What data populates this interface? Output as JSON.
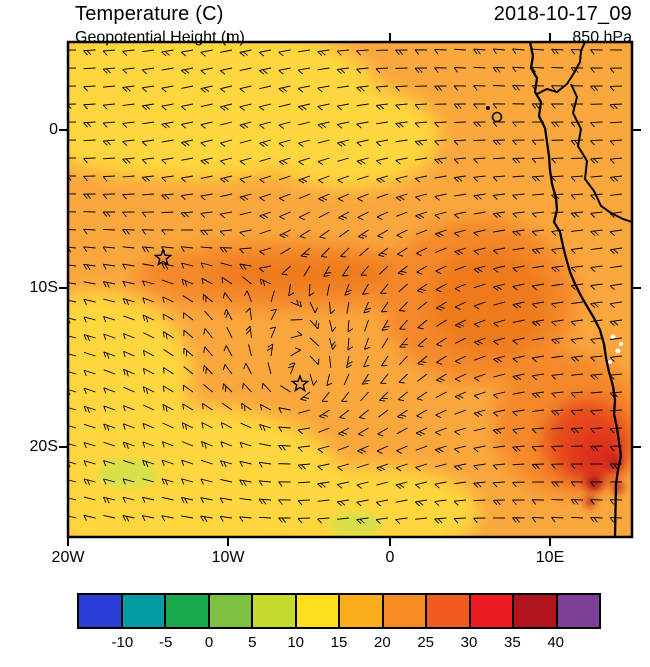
{
  "header": {
    "variable_title": "Temperature (C)",
    "overlay_title": "Geopotential Height (m)",
    "datetime": "2018-10-17_09",
    "level": "850 hPa"
  },
  "axes": {
    "y_tick_labels": [
      "0",
      "10S",
      "20S"
    ],
    "x_tick_labels": [
      "20W",
      "10W",
      "0",
      "10E"
    ]
  },
  "colorbar": {
    "tick_labels": [
      "-10",
      "-5",
      "0",
      "5",
      "10",
      "15",
      "20",
      "25",
      "30",
      "35",
      "40"
    ],
    "colors": [
      "#2B3FD8",
      "#009EA3",
      "#19A84B",
      "#7CC141",
      "#C6DB2F",
      "#FFDF1C",
      "#FBAD1E",
      "#F68C20",
      "#F25B20",
      "#EB1C23",
      "#B3131A",
      "#7E3F97"
    ]
  },
  "chart_data": {
    "type": "heatmap",
    "title": "Temperature (C)",
    "overlays": [
      "Geopotential Height (m)",
      "wind barbs"
    ],
    "valid_time": "2018-10-17_09",
    "pressure_level": "850 hPa",
    "x_axis": {
      "tick_labels": [
        "20W",
        "10W",
        "0",
        "10E"
      ],
      "approx_range": [
        "20W",
        "15E"
      ]
    },
    "y_axis": {
      "tick_labels": [
        "0",
        "10S",
        "20S"
      ],
      "approx_range": [
        "5N",
        "26S"
      ]
    },
    "colorbar_levels_c": [
      -10,
      -5,
      0,
      5,
      10,
      15,
      20,
      25,
      30,
      35,
      40
    ],
    "colorbar_colors": [
      "#2B3FD8",
      "#009EA3",
      "#19A84B",
      "#7CC141",
      "#C6DB2F",
      "#FFDF1C",
      "#FBAD1E",
      "#F68C20",
      "#F25B20",
      "#EB1C23",
      "#B3131A",
      "#7E3F97"
    ],
    "field_summary": [
      {
        "region": "most of the ocean domain",
        "temperature_c": "15-20"
      },
      {
        "region": "northwest corner and along the top edge",
        "temperature_c": "10-15"
      },
      {
        "region": "southwest quadrant and south-central patches",
        "temperature_c": "10-15"
      },
      {
        "region": "zonal band near 8S-11S from about 15W to 3E",
        "temperature_c": "20-25"
      },
      {
        "region": "large warm pool off the Angola coast, about 5E-14E / 6S-16S",
        "temperature_c": "20-25"
      },
      {
        "region": "Angola coastal interior near 12E-15E / 15S-22S",
        "temperature_c": "25-35"
      }
    ],
    "markers": [
      {
        "type": "star",
        "approx_position": "14W, 8S"
      },
      {
        "type": "star",
        "approx_position": "5.5W, 16S"
      }
    ],
    "geography": "West/Central African coastline from Gulf of Guinea to Angola with national borders"
  }
}
